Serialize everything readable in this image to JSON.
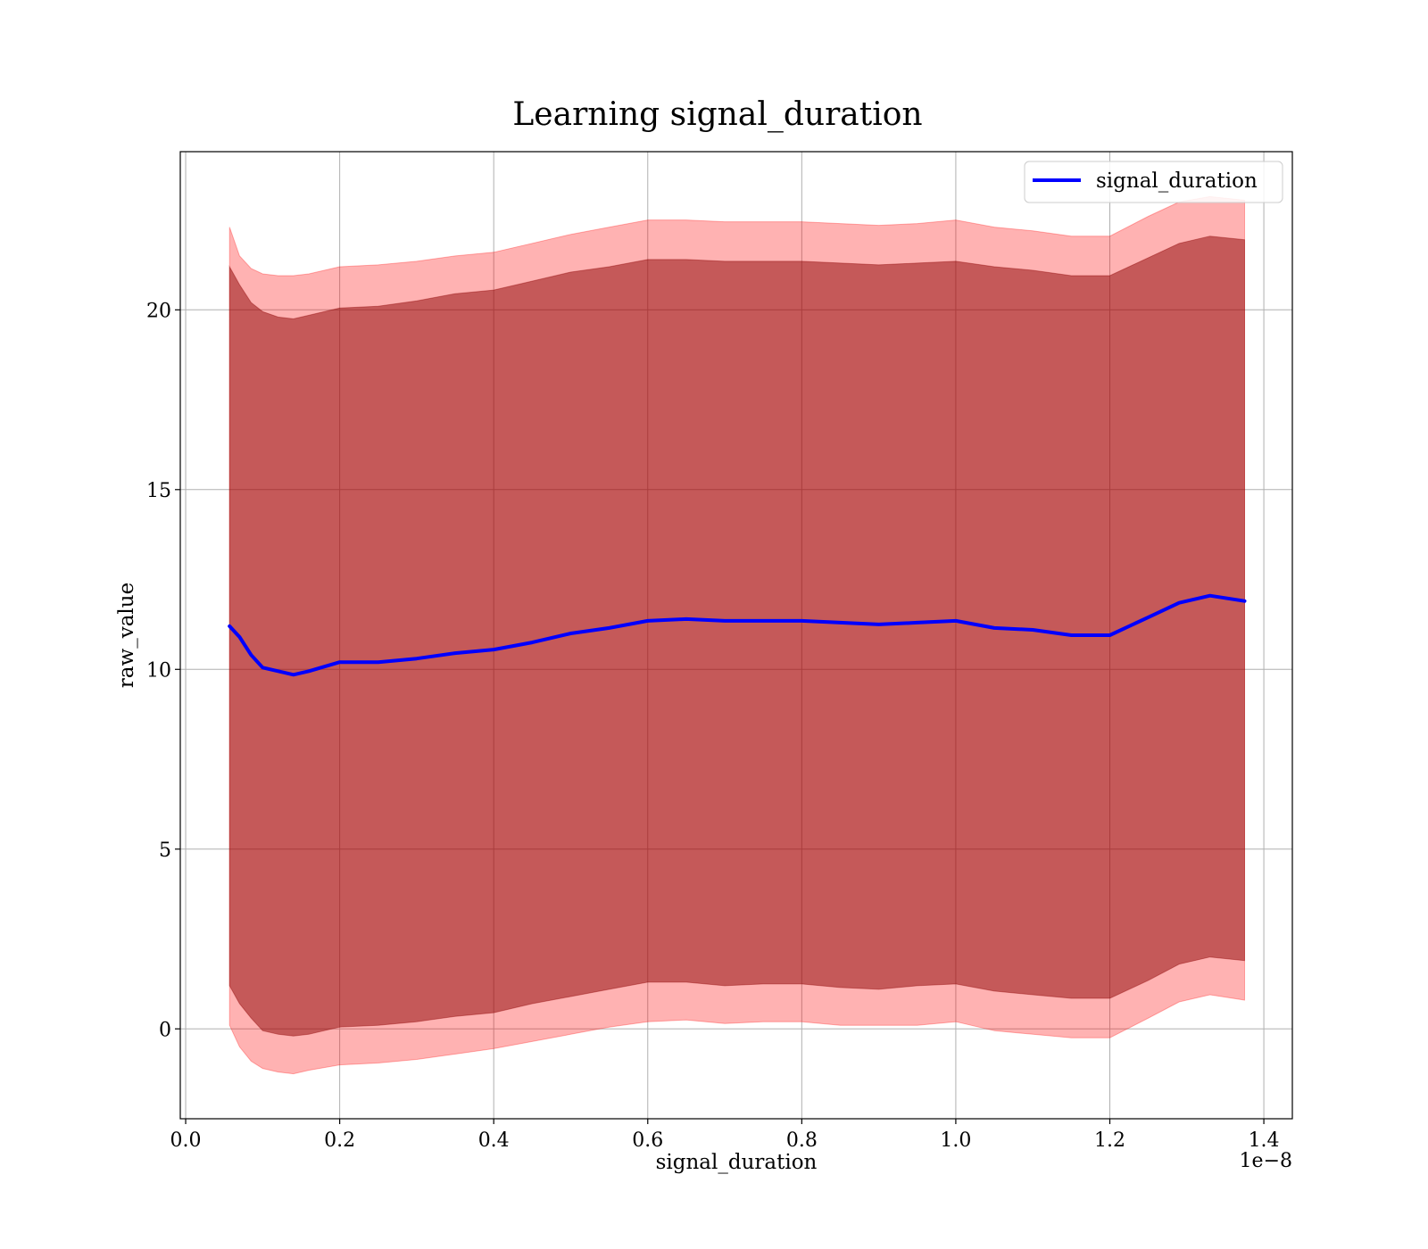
{
  "chart_data": {
    "type": "line",
    "title": "Learning signal_duration",
    "xlabel": "signal_duration",
    "ylabel": "raw_value",
    "x_offset_label": "1e−8",
    "xlim": [
      -0.007,
      1.437
    ],
    "ylim": [
      -2.5,
      24.4
    ],
    "xticks": [
      0.0,
      0.2,
      0.4,
      0.6,
      0.8,
      1.0,
      1.2,
      1.4
    ],
    "xtick_labels": [
      "0.0",
      "0.2",
      "0.4",
      "0.6",
      "0.8",
      "1.0",
      "1.2",
      "1.4"
    ],
    "yticks": [
      0,
      5,
      10,
      15,
      20
    ],
    "ytick_labels": [
      "0",
      "5",
      "10",
      "15",
      "20"
    ],
    "grid": true,
    "legend": {
      "position": "top-right",
      "entries": [
        "signal_duration"
      ]
    },
    "x_scale_note": "x values in units of 1e-8",
    "x": [
      0.057,
      0.07,
      0.085,
      0.1,
      0.12,
      0.14,
      0.16,
      0.2,
      0.25,
      0.3,
      0.35,
      0.4,
      0.45,
      0.5,
      0.55,
      0.6,
      0.65,
      0.7,
      0.75,
      0.8,
      0.85,
      0.9,
      0.95,
      1.0,
      1.05,
      1.1,
      1.15,
      1.2,
      1.25,
      1.29,
      1.33,
      1.375
    ],
    "series": [
      {
        "name": "signal_duration",
        "color": "#0000ff",
        "mean": [
          11.2,
          10.9,
          10.4,
          10.05,
          9.95,
          9.85,
          9.95,
          10.2,
          10.2,
          10.3,
          10.45,
          10.55,
          10.75,
          11.0,
          11.15,
          11.35,
          11.4,
          11.35,
          11.35,
          11.35,
          11.3,
          11.25,
          11.3,
          11.35,
          11.15,
          11.1,
          10.95,
          10.95,
          11.45,
          11.85,
          12.05,
          11.9
        ],
        "band_inner": {
          "color": "#8b0000",
          "lower": [
            1.2,
            0.7,
            0.3,
            -0.05,
            -0.15,
            -0.2,
            -0.15,
            0.05,
            0.1,
            0.2,
            0.35,
            0.45,
            0.7,
            0.9,
            1.1,
            1.3,
            1.3,
            1.2,
            1.25,
            1.25,
            1.15,
            1.1,
            1.2,
            1.25,
            1.05,
            0.95,
            0.85,
            0.85,
            1.35,
            1.8,
            2.0,
            1.9
          ],
          "upper": [
            21.2,
            20.7,
            20.2,
            19.95,
            19.8,
            19.75,
            19.85,
            20.05,
            20.1,
            20.25,
            20.45,
            20.55,
            20.8,
            21.05,
            21.2,
            21.4,
            21.4,
            21.35,
            21.35,
            21.35,
            21.3,
            21.25,
            21.3,
            21.35,
            21.2,
            21.1,
            20.95,
            20.95,
            21.45,
            21.85,
            22.05,
            21.95
          ]
        },
        "band_outer": {
          "color": "#ff0000",
          "lower": [
            0.1,
            -0.5,
            -0.9,
            -1.1,
            -1.2,
            -1.25,
            -1.15,
            -1.0,
            -0.95,
            -0.85,
            -0.7,
            -0.55,
            -0.35,
            -0.15,
            0.05,
            0.2,
            0.25,
            0.15,
            0.2,
            0.2,
            0.1,
            0.1,
            0.1,
            0.2,
            -0.05,
            -0.15,
            -0.25,
            -0.25,
            0.3,
            0.75,
            0.95,
            0.8
          ],
          "upper": [
            22.3,
            21.5,
            21.15,
            21.0,
            20.95,
            20.95,
            21.0,
            21.2,
            21.25,
            21.35,
            21.5,
            21.6,
            21.85,
            22.1,
            22.3,
            22.5,
            22.5,
            22.45,
            22.45,
            22.45,
            22.4,
            22.35,
            22.4,
            22.5,
            22.3,
            22.2,
            22.05,
            22.05,
            22.6,
            23.0,
            23.15,
            23.05
          ]
        }
      }
    ]
  }
}
